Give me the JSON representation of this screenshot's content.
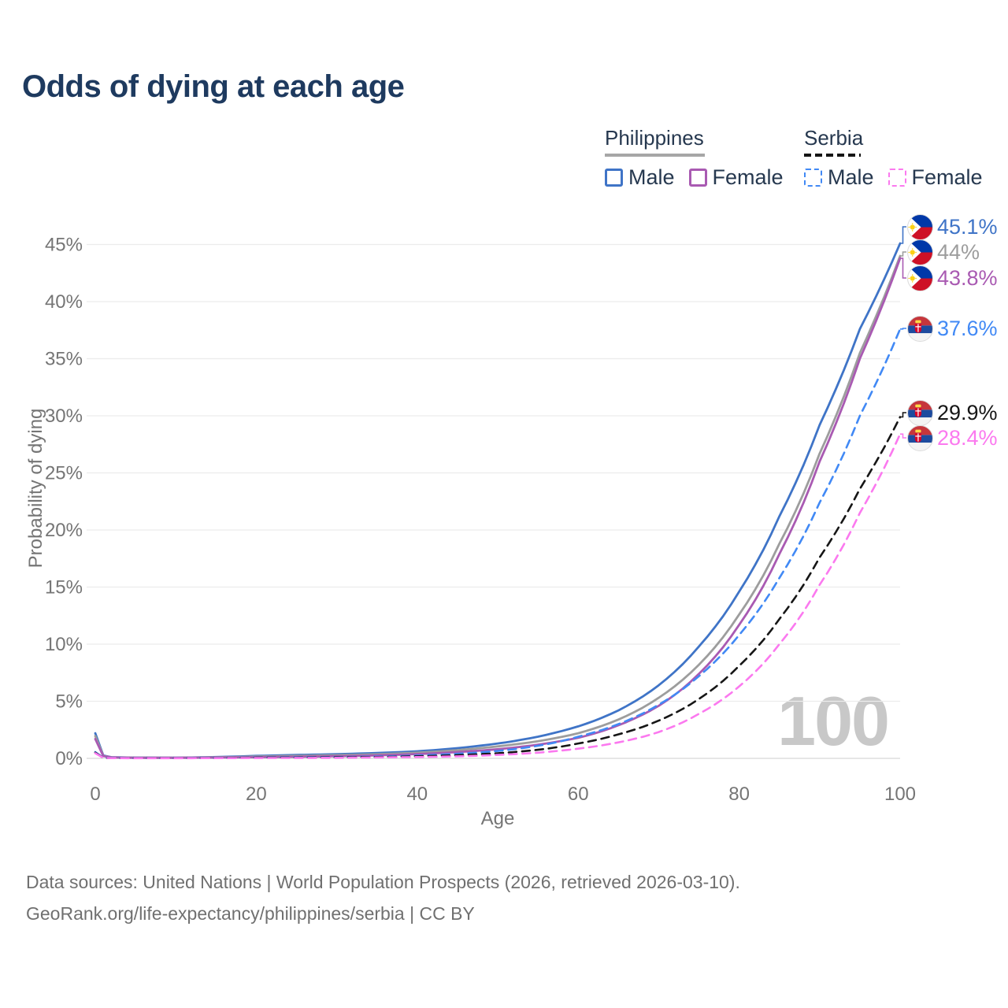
{
  "page": {
    "title": "Odds of dying at each age",
    "watermark_age": "100",
    "footer_line1": "Data sources: United Nations | World Population Prospects (2026, retrieved 2026-03-10).",
    "footer_line2": "GeoRank.org/life-expectancy/philippines/serbia | CC BY"
  },
  "legend": {
    "groups": [
      {
        "label": "Philippines",
        "underline": "solid",
        "underline_color": "#a6a6a6",
        "items": [
          {
            "label": "Male",
            "color": "#3f74c7",
            "dashed": false
          },
          {
            "label": "Female",
            "color": "#a95ab2",
            "dashed": false
          }
        ]
      },
      {
        "label": "Serbia",
        "underline": "dashed",
        "underline_color": "#161616",
        "items": [
          {
            "label": "Male",
            "color": "#4189f5",
            "dashed": true
          },
          {
            "label": "Female",
            "color": "#fb79ef",
            "dashed": true
          }
        ]
      }
    ]
  },
  "chart_data": {
    "type": "line",
    "title": "Odds of dying at each age",
    "xlabel": "Age",
    "ylabel": "Probability of dying",
    "xlim": [
      0,
      100
    ],
    "ylim": [
      0,
      46
    ],
    "grid": "horizontal",
    "x_ticks": [
      {
        "v": 0,
        "label": "0"
      },
      {
        "v": 20,
        "label": "20"
      },
      {
        "v": 40,
        "label": "40"
      },
      {
        "v": 60,
        "label": "60"
      },
      {
        "v": 80,
        "label": "80"
      },
      {
        "v": 100,
        "label": "100"
      }
    ],
    "y_ticks": [
      {
        "v": 0,
        "label": "0%"
      },
      {
        "v": 5,
        "label": "5%"
      },
      {
        "v": 10,
        "label": "10%"
      },
      {
        "v": 15,
        "label": "15%"
      },
      {
        "v": 20,
        "label": "20%"
      },
      {
        "v": 25,
        "label": "25%"
      },
      {
        "v": 30,
        "label": "30%"
      },
      {
        "v": 35,
        "label": "35%"
      },
      {
        "v": 40,
        "label": "40%"
      },
      {
        "v": 45,
        "label": "45%"
      }
    ],
    "ages": [
      0,
      1,
      2,
      5,
      10,
      15,
      20,
      25,
      30,
      35,
      40,
      45,
      50,
      55,
      60,
      65,
      70,
      75,
      80,
      85,
      90,
      95,
      100
    ],
    "series": [
      {
        "name": "Philippines Male",
        "country": "Philippines",
        "sex": "Male",
        "style": "solid",
        "color": "#3f74c7",
        "flag": "ph",
        "end_label": "45.1%",
        "end_value": 45.1,
        "values": [
          2.2,
          0.25,
          0.1,
          0.07,
          0.06,
          0.12,
          0.22,
          0.3,
          0.37,
          0.47,
          0.62,
          0.9,
          1.3,
          1.9,
          2.8,
          4.2,
          6.4,
          9.8,
          14.6,
          21.2,
          29.2,
          37.6,
          45.1
        ]
      },
      {
        "name": "Philippines Both sexes",
        "country": "Philippines",
        "sex": "Both",
        "style": "solid",
        "color": "#9d9d9d",
        "flag": "ph",
        "end_label": "44%",
        "end_value": 44.0,
        "values": [
          1.95,
          0.22,
          0.09,
          0.06,
          0.05,
          0.09,
          0.16,
          0.22,
          0.28,
          0.36,
          0.5,
          0.72,
          1.05,
          1.5,
          2.2,
          3.4,
          5.3,
          8.2,
          12.6,
          18.8,
          26.7,
          35.5,
          44.0
        ]
      },
      {
        "name": "Philippines Female",
        "country": "Philippines",
        "sex": "Female",
        "style": "solid",
        "color": "#a95ab2",
        "flag": "ph",
        "end_label": "43.8%",
        "end_value": 43.8,
        "values": [
          1.7,
          0.2,
          0.08,
          0.05,
          0.05,
          0.07,
          0.1,
          0.14,
          0.19,
          0.26,
          0.38,
          0.55,
          0.8,
          1.2,
          1.8,
          2.9,
          4.6,
          7.4,
          11.7,
          17.9,
          26.0,
          35.0,
          43.8
        ]
      },
      {
        "name": "Serbia Male",
        "country": "Serbia",
        "sex": "Male",
        "style": "dashed",
        "color": "#4189f5",
        "flag": "rs",
        "end_label": "37.6%",
        "end_value": 37.6,
        "values": [
          0.55,
          0.05,
          0.03,
          0.02,
          0.02,
          0.04,
          0.08,
          0.1,
          0.12,
          0.16,
          0.25,
          0.4,
          0.65,
          1.1,
          1.9,
          3.0,
          4.7,
          7.2,
          10.8,
          15.8,
          22.4,
          30.0,
          37.6
        ]
      },
      {
        "name": "Serbia Both sexes",
        "country": "Serbia",
        "sex": "Both",
        "style": "dashed",
        "color": "#161616",
        "flag": "rs",
        "end_label": "29.9%",
        "end_value": 29.9,
        "values": [
          0.5,
          0.04,
          0.02,
          0.02,
          0.02,
          0.03,
          0.06,
          0.07,
          0.09,
          0.12,
          0.18,
          0.28,
          0.45,
          0.75,
          1.3,
          2.1,
          3.3,
          5.2,
          8.1,
          12.2,
          17.6,
          23.6,
          29.9
        ]
      },
      {
        "name": "Serbia Female",
        "country": "Serbia",
        "sex": "Female",
        "style": "dashed",
        "color": "#fb79ef",
        "flag": "rs",
        "end_label": "28.4%",
        "end_value": 28.4,
        "values": [
          0.45,
          0.04,
          0.02,
          0.015,
          0.015,
          0.02,
          0.03,
          0.04,
          0.05,
          0.08,
          0.12,
          0.18,
          0.3,
          0.5,
          0.85,
          1.4,
          2.3,
          3.9,
          6.3,
          10.0,
          15.2,
          21.5,
          28.4
        ]
      }
    ]
  }
}
